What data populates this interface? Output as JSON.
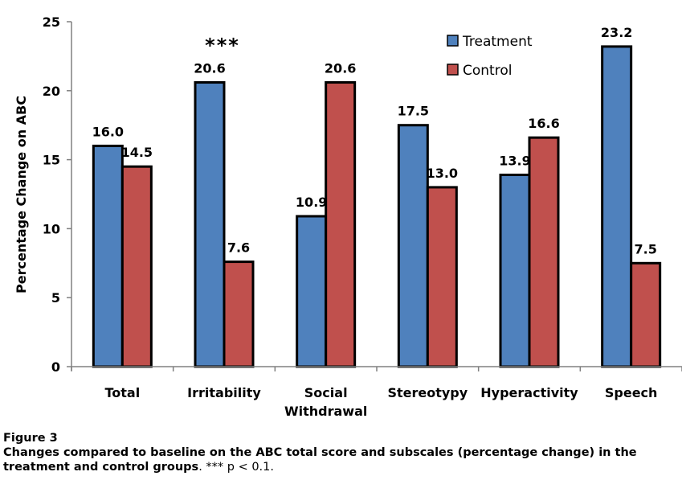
{
  "chart_data": {
    "type": "bar",
    "title": "",
    "xlabel": "",
    "ylabel": "Percentage Change on ABC",
    "ylim": [
      0,
      25
    ],
    "yticks": [
      0,
      5,
      10,
      15,
      20,
      25
    ],
    "grid": false,
    "legend_position": "top-right",
    "categories": [
      [
        "Total"
      ],
      [
        "Irritability"
      ],
      [
        "Social",
        "Withdrawal"
      ],
      [
        "Stereotypy"
      ],
      [
        "Hyperactivity"
      ],
      [
        "Speech"
      ]
    ],
    "series": [
      {
        "name": "Treatment",
        "color": "#4F81BD",
        "values": [
          16.0,
          20.6,
          10.9,
          17.5,
          13.9,
          23.2
        ],
        "labels": [
          "16.0",
          "20.6",
          "10.9",
          "17.5",
          "13.9",
          "23.2"
        ]
      },
      {
        "name": "Control",
        "color": "#C0504D",
        "values": [
          14.5,
          7.6,
          20.6,
          13.0,
          16.6,
          7.5
        ],
        "labels": [
          "14.5",
          "7.6",
          "20.6",
          "13.0",
          "16.6",
          "7.5"
        ]
      }
    ],
    "annotations": [
      {
        "text": "***",
        "category_index": 1
      }
    ]
  },
  "caption": {
    "label": "Figure 3",
    "body": "Changes compared to baseline on the ABC total score and subscales (percentage change) in the treatment and control groups",
    "note": ". *** p < 0.1."
  }
}
